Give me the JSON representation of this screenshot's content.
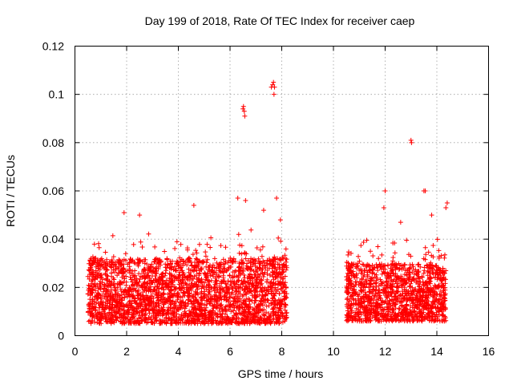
{
  "chart_data": {
    "type": "scatter",
    "title": "Day 199 of 2018, Rate Of TEC Index for receiver caep",
    "xlabel": "GPS time / hours",
    "ylabel": "ROTI / TECUs",
    "xlim": [
      0,
      16
    ],
    "ylim": [
      0,
      0.12
    ],
    "x_ticks": [
      0,
      2,
      4,
      6,
      8,
      10,
      12,
      14,
      16
    ],
    "x_tick_labels": [
      "0",
      "2",
      "4",
      "6",
      "8",
      "10",
      "12",
      "14",
      "16"
    ],
    "y_ticks": [
      0,
      0.02,
      0.04,
      0.06,
      0.08,
      0.1,
      0.12
    ],
    "y_tick_labels": [
      "0",
      "0.02",
      "0.04",
      "0.06",
      "0.08",
      "0.1",
      "0.12"
    ],
    "grid": true,
    "marker": "plus",
    "color": "#ff0000",
    "dense_segments": [
      {
        "x_start": 0.5,
        "x_end": 8.2,
        "y_min": 0.005,
        "y_max": 0.032,
        "n": 2600
      },
      {
        "x_start": 10.5,
        "x_end": 14.35,
        "y_min": 0.006,
        "y_max": 0.03,
        "n": 1300
      }
    ],
    "outliers": [
      {
        "x": 6.5,
        "y": 0.094
      },
      {
        "x": 6.52,
        "y": 0.095
      },
      {
        "x": 6.55,
        "y": 0.093
      },
      {
        "x": 6.57,
        "y": 0.091
      },
      {
        "x": 7.6,
        "y": 0.103
      },
      {
        "x": 7.65,
        "y": 0.104
      },
      {
        "x": 7.68,
        "y": 0.105
      },
      {
        "x": 7.7,
        "y": 0.1
      },
      {
        "x": 7.72,
        "y": 0.103
      },
      {
        "x": 13.0,
        "y": 0.081
      },
      {
        "x": 13.02,
        "y": 0.08
      },
      {
        "x": 1.9,
        "y": 0.051
      },
      {
        "x": 2.5,
        "y": 0.05
      },
      {
        "x": 4.6,
        "y": 0.054
      },
      {
        "x": 6.3,
        "y": 0.057
      },
      {
        "x": 6.6,
        "y": 0.056
      },
      {
        "x": 7.3,
        "y": 0.052
      },
      {
        "x": 7.8,
        "y": 0.057
      },
      {
        "x": 7.95,
        "y": 0.048
      },
      {
        "x": 12.0,
        "y": 0.06
      },
      {
        "x": 11.95,
        "y": 0.053
      },
      {
        "x": 13.5,
        "y": 0.06
      },
      {
        "x": 13.55,
        "y": 0.06
      },
      {
        "x": 14.4,
        "y": 0.055
      },
      {
        "x": 14.35,
        "y": 0.053
      },
      {
        "x": 13.8,
        "y": 0.05
      },
      {
        "x": 12.6,
        "y": 0.047
      }
    ]
  }
}
